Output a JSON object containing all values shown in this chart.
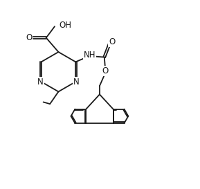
{
  "bg_color": "#ffffff",
  "line_color": "#1a1a1a",
  "line_width": 1.3,
  "font_size": 8.5,
  "figsize": [
    2.89,
    2.73
  ],
  "dpi": 100,
  "xlim": [
    0,
    10
  ],
  "ylim": [
    0,
    10
  ]
}
